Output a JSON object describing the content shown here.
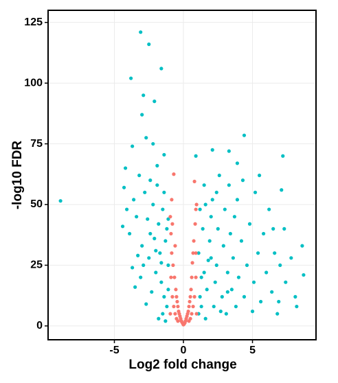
{
  "chart_data": {
    "type": "scatter",
    "x_label": "Log2 fold change",
    "y_label": "-log10 FDR",
    "xlim": [
      -9.8,
      9.6
    ],
    "ylim": [
      -5.7,
      130
    ],
    "xticks": [
      -5,
      0,
      5
    ],
    "yticks": [
      0,
      25,
      50,
      75,
      100,
      125
    ],
    "grid": true,
    "series": [
      {
        "color": "#00bfc4",
        "x": [
          -8.9,
          -3.1,
          -2.5,
          -1.6,
          -3.8,
          -2.9,
          -2.1,
          -3.0,
          -3.7,
          -2.7,
          -2.2,
          -1.4,
          -1.9,
          -4.2,
          4.4,
          3.3,
          7.2,
          2.1,
          0.9,
          3.9,
          8.6,
          8.7,
          7.1,
          7.3,
          6.9,
          8.1,
          -4.3,
          -4.1,
          -4.4,
          -3.9,
          -3.6,
          -3.4,
          -3.2,
          -3.0,
          -2.8,
          -2.6,
          -2.5,
          -2.4,
          -2.2,
          -2.1,
          -2.0,
          -1.9,
          -1.8,
          -1.7,
          -1.6,
          -1.5,
          -1.4,
          -1.3,
          -1.2,
          -1.1,
          -1.2,
          -1.5,
          -1.8,
          -2.3,
          -2.7,
          -3.1,
          -3.5,
          -1.3,
          -1.1,
          -1.6,
          -2.0,
          -2.4,
          -2.9,
          -3.3,
          -3.7,
          -1.4,
          -1.1,
          1.1,
          1.2,
          1.3,
          1.1,
          1.4,
          1.2,
          1.5,
          1.6,
          1.7,
          1.8,
          1.9,
          2.0,
          2.1,
          2.2,
          2.3,
          2.4,
          2.5,
          2.6,
          2.8,
          2.9,
          3.0,
          3.1,
          3.2,
          3.3,
          3.4,
          3.5,
          3.6,
          3.7,
          3.8,
          3.9,
          4.0,
          4.2,
          4.3,
          4.4,
          4.6,
          4.8,
          5.0,
          5.1,
          5.2,
          5.4,
          5.6,
          5.8,
          6.0,
          6.2,
          6.4,
          6.6,
          6.8,
          7.0,
          7.4,
          7.8,
          8.2,
          1.5,
          2.0,
          2.7,
          3.2,
          1.3,
          1.6,
          2.4,
          5.5,
          6.5
        ],
        "values": [
          51.5,
          121,
          116,
          106,
          102,
          95,
          92.5,
          87,
          74,
          77.5,
          75,
          70.5,
          66,
          65,
          78.5,
          72,
          70,
          72.5,
          70,
          67,
          33,
          21,
          56,
          40,
          10,
          12,
          57,
          48,
          41,
          38,
          52,
          45,
          62,
          33,
          55,
          44,
          28,
          60,
          50,
          36,
          22,
          58,
          42,
          30,
          18,
          48,
          12,
          35,
          8,
          25,
          40,
          5,
          3,
          14,
          9,
          20,
          16,
          2,
          15,
          26,
          31,
          38,
          25,
          29,
          24,
          55,
          44,
          5,
          12,
          20,
          30,
          40,
          48,
          58,
          3,
          15,
          27,
          35,
          45,
          52,
          8,
          18,
          25,
          40,
          62,
          12,
          33,
          48,
          5,
          22,
          58,
          38,
          15,
          28,
          45,
          8,
          52,
          20,
          35,
          60,
          12,
          25,
          42,
          6,
          18,
          55,
          30,
          10,
          38,
          22,
          48,
          14,
          30,
          5,
          25,
          18,
          28,
          8,
          22,
          28,
          6,
          14,
          8,
          50,
          55,
          62,
          40
        ]
      },
      {
        "color": "#f8766d",
        "x": [
          -0.95,
          -0.9,
          -0.85,
          -0.8,
          -0.75,
          -0.7,
          -0.65,
          -0.6,
          -0.55,
          -0.5,
          -0.45,
          -0.4,
          -0.35,
          -0.3,
          -0.25,
          -0.2,
          -0.15,
          -0.1,
          -0.05,
          0,
          0.05,
          0.1,
          0.15,
          0.2,
          0.25,
          0.3,
          0.35,
          0.4,
          0.45,
          0.5,
          0.55,
          0.6,
          0.65,
          0.7,
          0.75,
          0.8,
          0.85,
          0.9,
          0.95,
          -0.9,
          -0.8,
          -0.7,
          -0.6,
          -0.5,
          -0.4,
          0.4,
          0.5,
          0.6,
          0.7,
          0.8,
          0.9,
          -0.95,
          0.95,
          0.9,
          -0.85
        ],
        "values": [
          45,
          38,
          30,
          42,
          25,
          62.5,
          20,
          33,
          15,
          12,
          10,
          8,
          6,
          5,
          4,
          3,
          2,
          1.5,
          1,
          0.5,
          0.8,
          1.2,
          2,
          3,
          4,
          5,
          6,
          8,
          10,
          12,
          15,
          20,
          26,
          30,
          35,
          59.5,
          42,
          48,
          50,
          20,
          12,
          8,
          5,
          3,
          2,
          2,
          3,
          5,
          8,
          12,
          20,
          5,
          5,
          30,
          52
        ]
      }
    ]
  }
}
